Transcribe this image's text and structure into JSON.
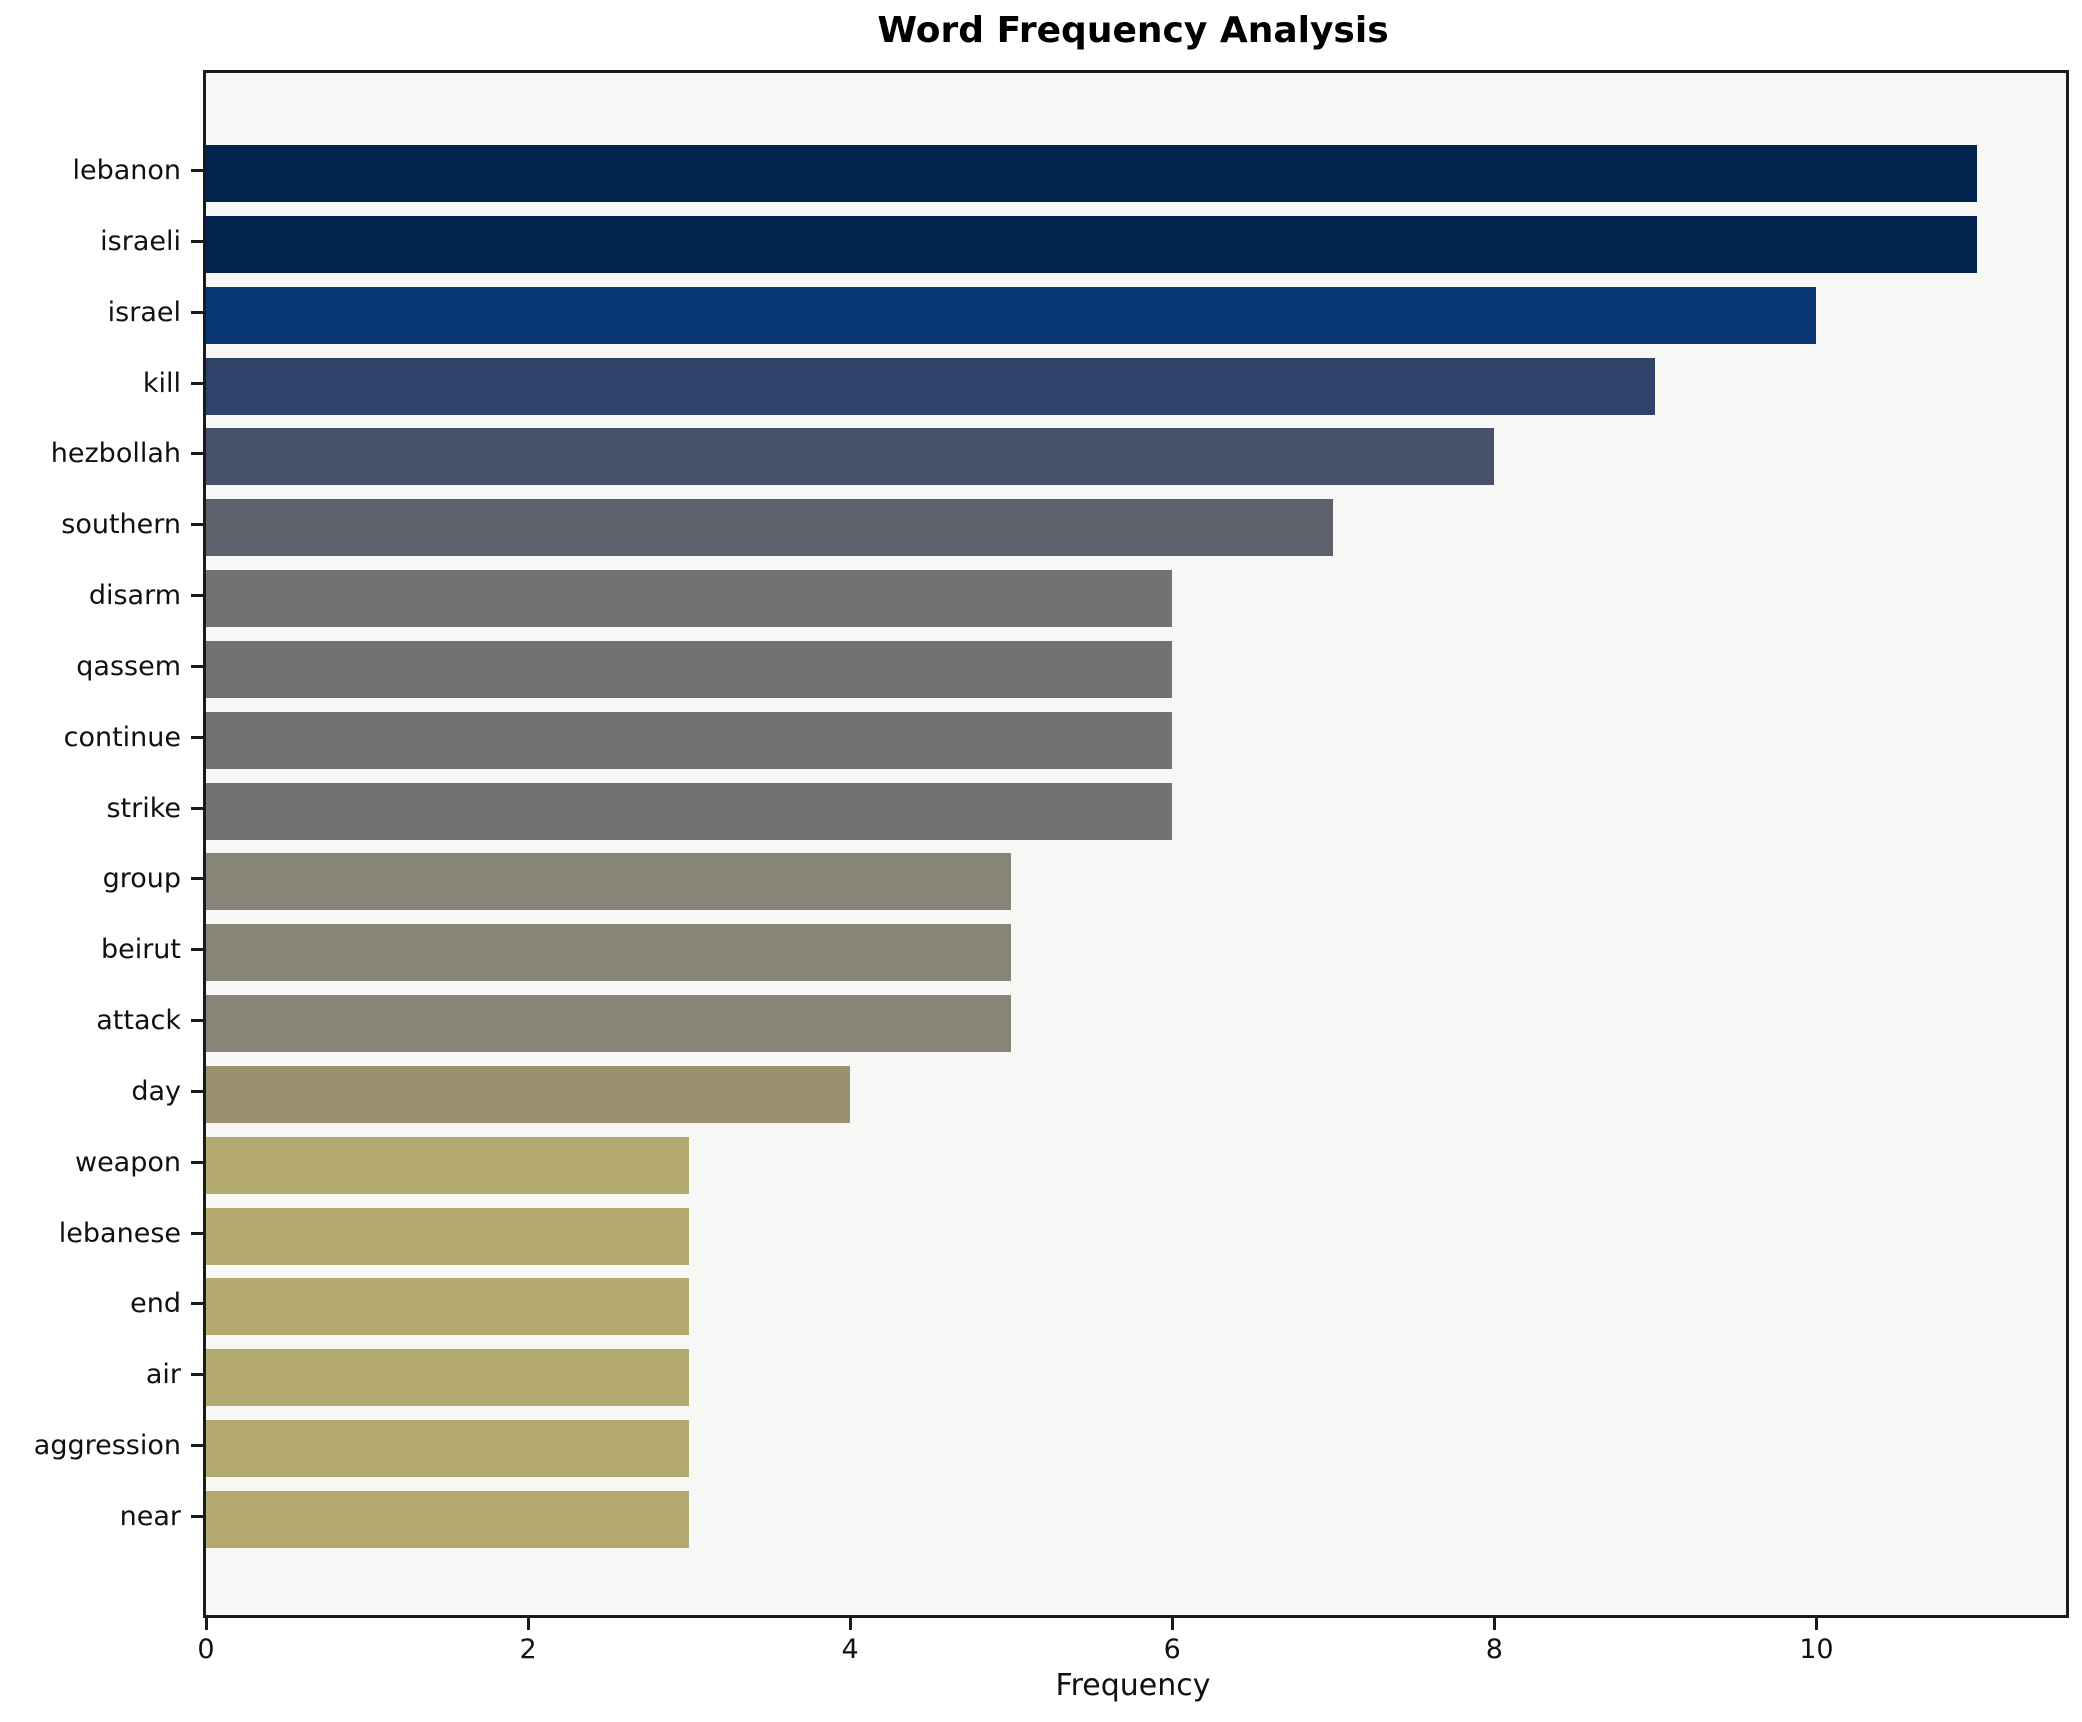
{
  "title": "Word Frequency Analysis",
  "xlabel": "Frequency",
  "chart_data": {
    "type": "bar",
    "orientation": "horizontal",
    "title": "Word Frequency Analysis",
    "xlabel": "Frequency",
    "ylabel": "",
    "categories": [
      "lebanon",
      "israeli",
      "israel",
      "kill",
      "hezbollah",
      "southern",
      "disarm",
      "qassem",
      "continue",
      "strike",
      "group",
      "beirut",
      "attack",
      "day",
      "weapon",
      "lebanese",
      "end",
      "air",
      "aggression",
      "near"
    ],
    "values": [
      11,
      11,
      10,
      9,
      8,
      7,
      6,
      6,
      6,
      6,
      5,
      5,
      5,
      4,
      3,
      3,
      3,
      3,
      3,
      3
    ],
    "bar_colors": [
      "#02234e",
      "#02234e",
      "#0a3777",
      "#2f4269",
      "#475169",
      "#5d616c",
      "#717273",
      "#717273",
      "#717273",
      "#717273",
      "#878578",
      "#878578",
      "#878578",
      "#9a916f",
      "#b4a96e",
      "#b4a96e",
      "#b4a96e",
      "#b4a96e",
      "#b4a96e",
      "#b4a96e"
    ],
    "xticks": [
      0,
      2,
      4,
      6,
      8,
      10
    ],
    "xlim": [
      0,
      11.55
    ],
    "grid": false,
    "legend": "none",
    "colormap": "cividis",
    "plot_bg_color": "#f7f7f6",
    "spine_color": "#1a1a1a"
  }
}
